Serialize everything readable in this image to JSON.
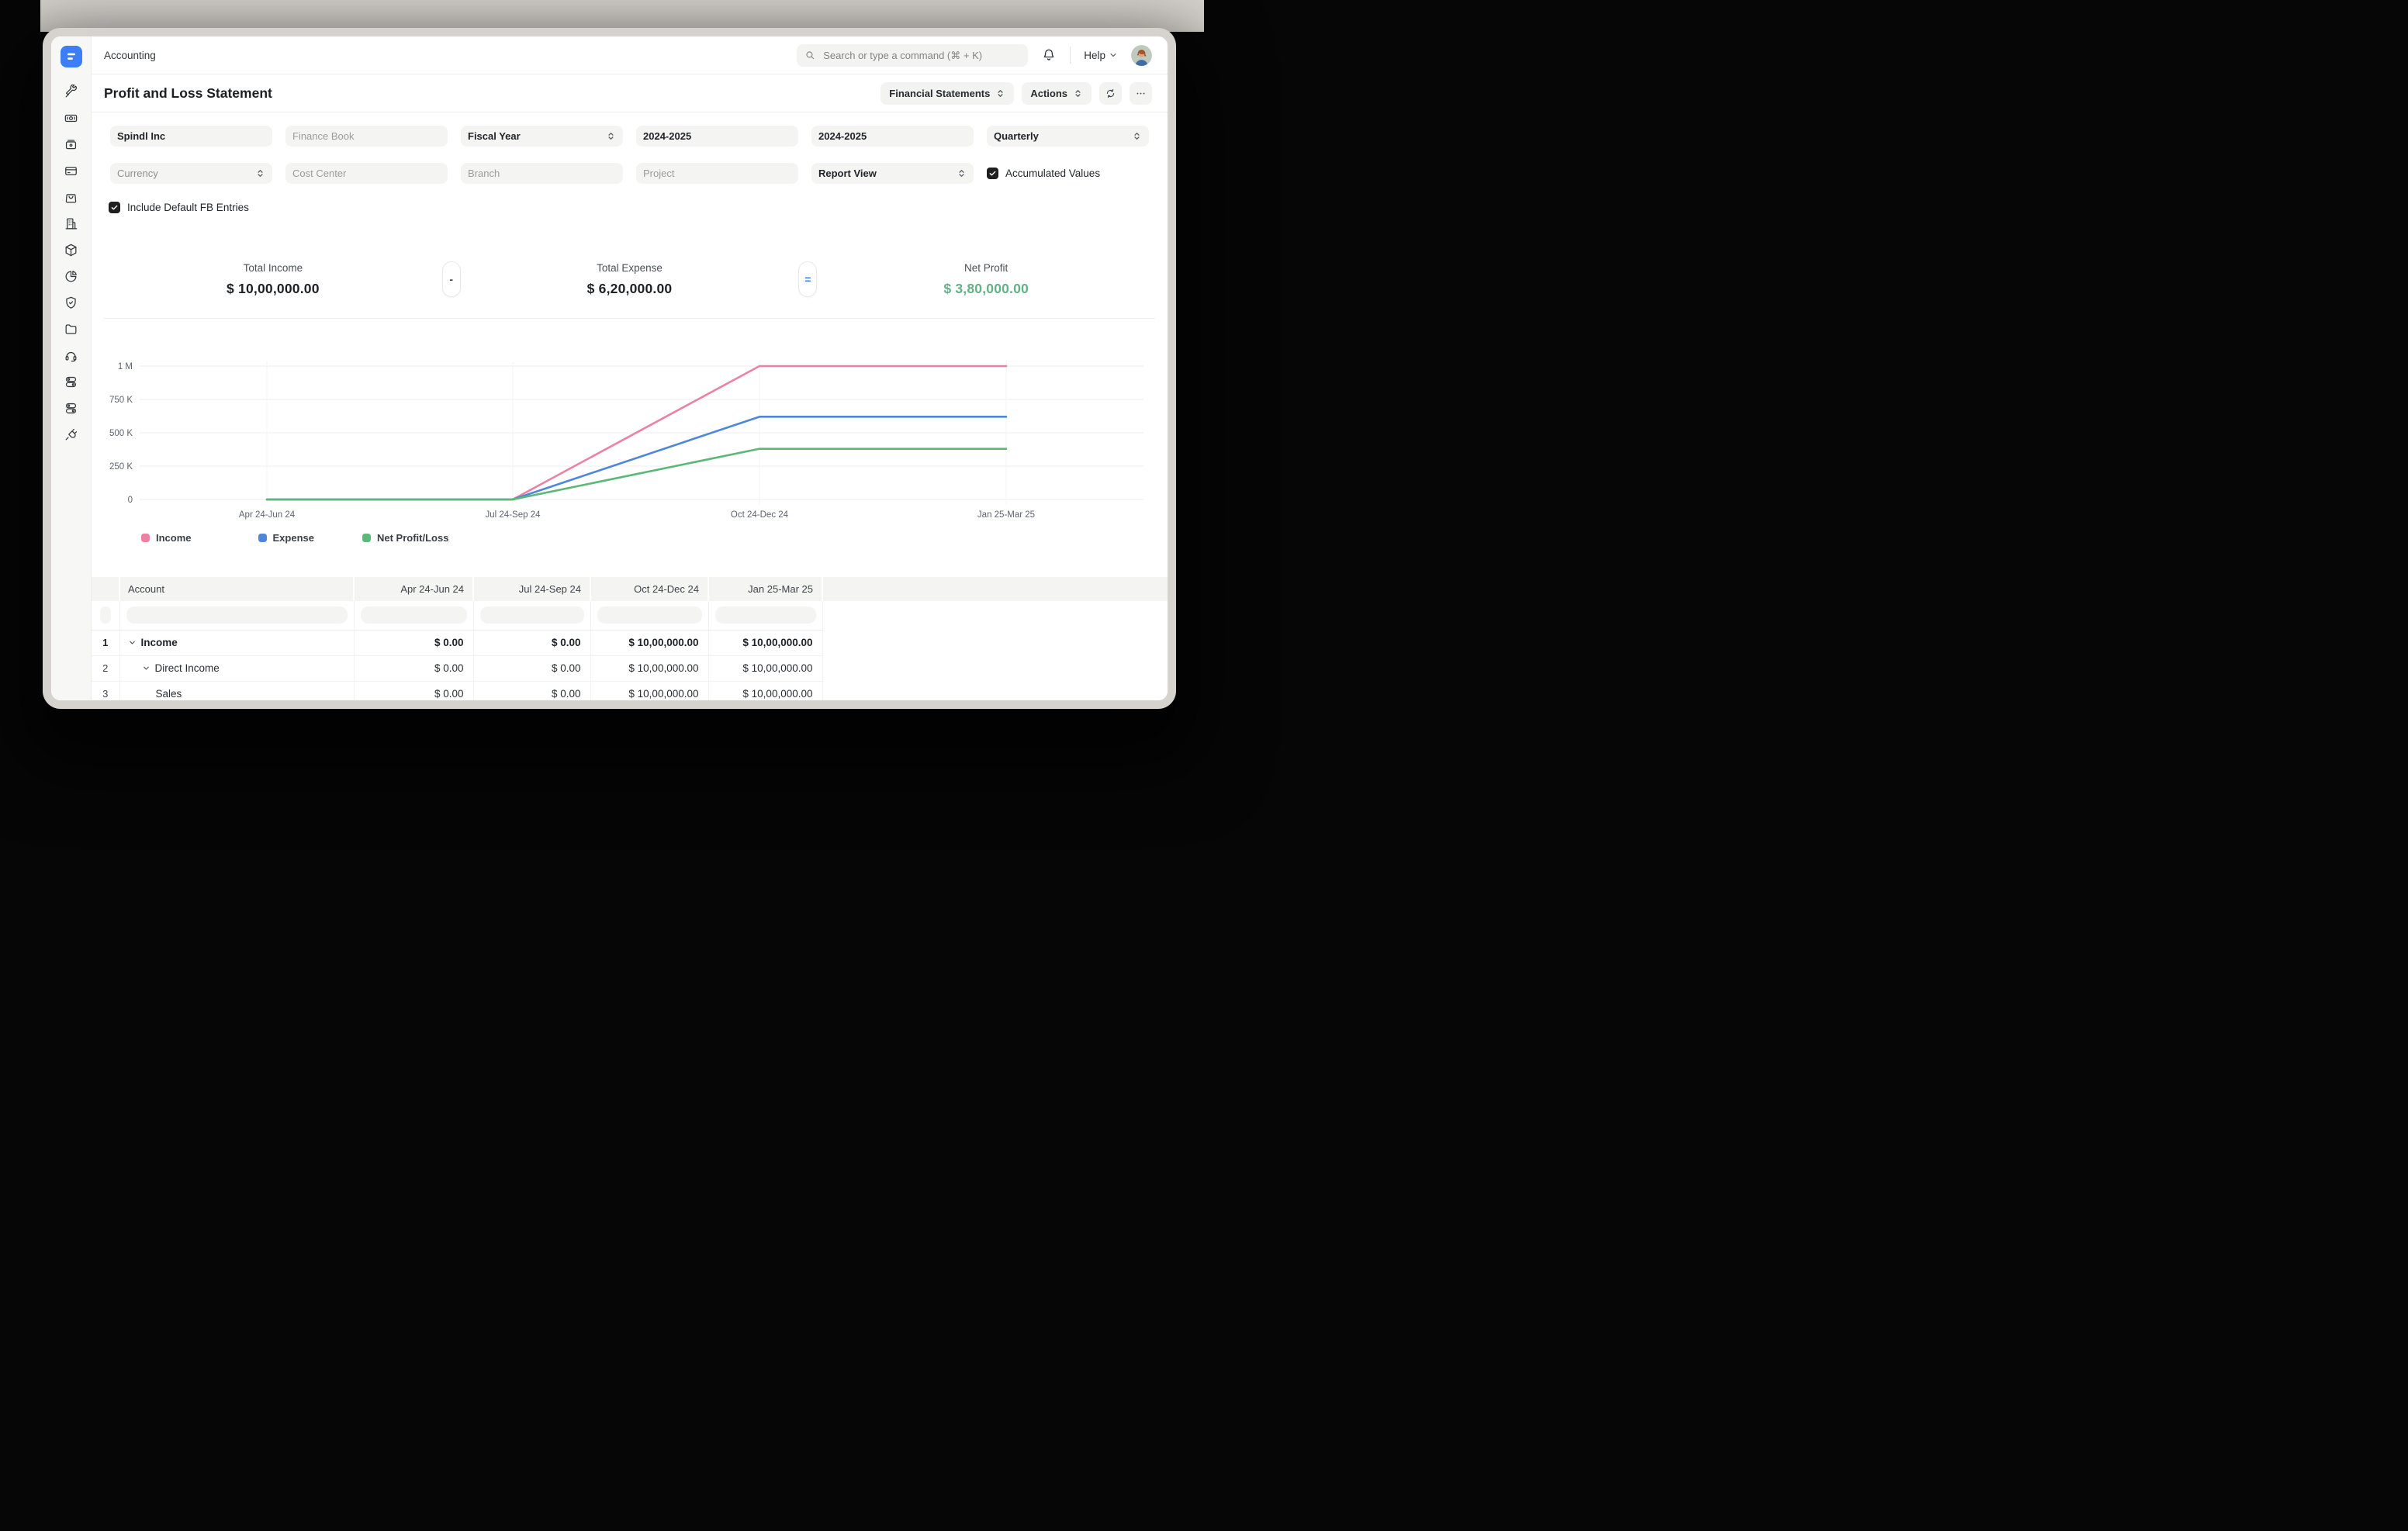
{
  "topbar": {
    "app_label": "Accounting",
    "search_placeholder": "Search or type a command (⌘ + K)",
    "help_label": "Help"
  },
  "sidebar": {
    "icons": [
      "tools",
      "banknote",
      "archive-drawer",
      "credit-card",
      "shopping-bag",
      "building",
      "package",
      "pie-chart",
      "shield-check",
      "folder",
      "headset",
      "toggles",
      "toggles-alt",
      "plug"
    ]
  },
  "page": {
    "title": "Profit and Loss Statement",
    "report_group_label": "Financial Statements",
    "actions_label": "Actions"
  },
  "filters": {
    "row1": [
      {
        "name": "filter-company",
        "text": "Spindl Inc",
        "style": "value"
      },
      {
        "name": "filter-finance-book",
        "text": "Finance Book",
        "style": "placeholder"
      },
      {
        "name": "filter-period-basis",
        "text": "Fiscal Year",
        "style": "select"
      },
      {
        "name": "filter-start-year",
        "text": "2024-2025",
        "style": "value"
      },
      {
        "name": "filter-end-year",
        "text": "2024-2025",
        "style": "value"
      },
      {
        "name": "filter-periodicity",
        "text": "Quarterly",
        "style": "select"
      }
    ],
    "row2": [
      {
        "name": "filter-currency",
        "text": "Currency",
        "style": "select-placeholder"
      },
      {
        "name": "filter-cost-center",
        "text": "Cost Center",
        "style": "placeholder"
      },
      {
        "name": "filter-branch",
        "text": "Branch",
        "style": "placeholder"
      },
      {
        "name": "filter-project",
        "text": "Project",
        "style": "placeholder"
      },
      {
        "name": "filter-report-view",
        "text": "Report View",
        "style": "select"
      }
    ],
    "accumulated_values": {
      "label": "Accumulated Values",
      "checked": true
    },
    "include_default_fb": {
      "label": "Include Default FB Entries",
      "checked": true
    }
  },
  "summary": {
    "income": {
      "label": "Total Income",
      "value": "$ 10,00,000.00"
    },
    "minus_op": "-",
    "expense": {
      "label": "Total Expense",
      "value": "$ 6,20,000.00"
    },
    "equals_op": "=",
    "net_profit": {
      "label": "Net Profit",
      "value": "$ 3,80,000.00",
      "color": "#63b286"
    }
  },
  "chart_data": {
    "type": "line",
    "categories": [
      "Apr 24-Jun 24",
      "Jul 24-Sep 24",
      "Oct 24-Dec 24",
      "Jan 25-Mar 25"
    ],
    "series": [
      {
        "name": "Income",
        "color": "#ec82a3",
        "values": [
          0,
          0,
          1000000,
          1000000
        ]
      },
      {
        "name": "Expense",
        "color": "#4f86d9",
        "values": [
          0,
          0,
          620000,
          620000
        ]
      },
      {
        "name": "Net Profit/Loss",
        "color": "#5cb878",
        "values": [
          0,
          0,
          380000,
          380000
        ]
      }
    ],
    "ylim": [
      0,
      1000000
    ],
    "yticks": [
      {
        "label": "1 M",
        "value": 1000000
      },
      {
        "label": "750 K",
        "value": 750000
      },
      {
        "label": "500 K",
        "value": 500000
      },
      {
        "label": "250 K",
        "value": 250000
      },
      {
        "label": "0",
        "value": 0
      }
    ],
    "grid": true,
    "legend_position": "bottom"
  },
  "table": {
    "columns": [
      "Account",
      "Apr 24-Jun 24",
      "Jul 24-Sep 24",
      "Oct 24-Dec 24",
      "Jan 25-Mar 25"
    ],
    "rows": [
      {
        "num": "1",
        "account": "Income",
        "indent": 0,
        "expandable": true,
        "bold": true,
        "values": [
          "$ 0.00",
          "$ 0.00",
          "$ 10,00,000.00",
          "$ 10,00,000.00"
        ]
      },
      {
        "num": "2",
        "account": "Direct Income",
        "indent": 1,
        "expandable": true,
        "bold": false,
        "values": [
          "$ 0.00",
          "$ 0.00",
          "$ 10,00,000.00",
          "$ 10,00,000.00"
        ]
      },
      {
        "num": "3",
        "account": "Sales",
        "indent": 2,
        "expandable": false,
        "bold": false,
        "values": [
          "$ 0.00",
          "$ 0.00",
          "$ 10,00,000.00",
          "$ 10,00,000.00"
        ]
      }
    ]
  },
  "colors": {
    "accent_blue": "#3b7ef8",
    "net_profit_green": "#63b286"
  }
}
